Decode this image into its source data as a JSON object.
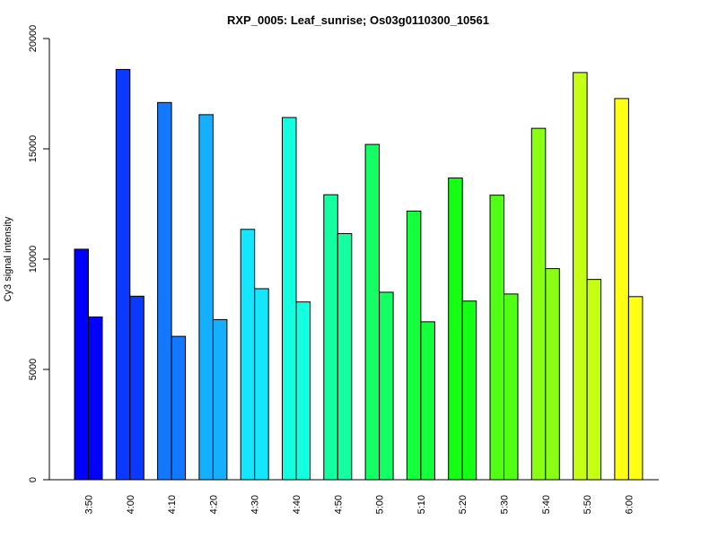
{
  "chart_data": {
    "type": "bar",
    "title": "RXP_0005: Leaf_sunrise; Os03g0110300_10561",
    "xlabel": "",
    "ylabel": "Cy3 signal intensity",
    "ylim": [
      0,
      20000
    ],
    "yticks": [
      "0",
      "5000",
      "10000",
      "15000",
      "20000"
    ],
    "categories": [
      "3:50",
      "4:00",
      "4:10",
      "4:20",
      "4:30",
      "4:40",
      "4:50",
      "5:00",
      "5:10",
      "5:20",
      "5:30",
      "5:40",
      "5:50",
      "6:00"
    ],
    "colors": [
      "#0000ff",
      "#0b39ff",
      "#1478ff",
      "#14b0ff",
      "#14e6ff",
      "#14ffe0",
      "#14ffa0",
      "#14ff64",
      "#14ff3c",
      "#14ff14",
      "#50ff14",
      "#8aff14",
      "#c4ff14",
      "#ffff14"
    ],
    "series": [
      {
        "values": [
          10450,
          18600,
          17100,
          16550,
          11350,
          16420,
          12920,
          15200,
          12180,
          13680,
          12900,
          15930,
          18460,
          17280
        ]
      },
      {
        "values": [
          7380,
          8320,
          6500,
          7260,
          8660,
          8060,
          11160,
          8500,
          7160,
          8100,
          8420,
          9570,
          9080,
          8300
        ]
      }
    ],
    "grid": false,
    "legend": "none"
  }
}
